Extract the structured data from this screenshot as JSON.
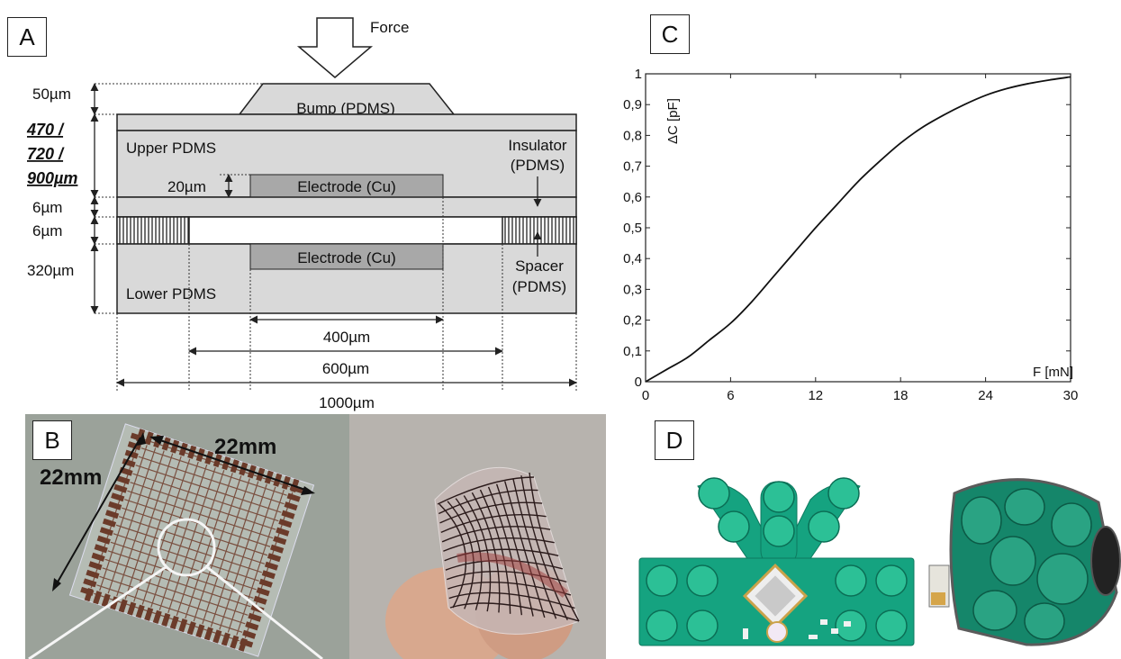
{
  "panels": {
    "a": "A",
    "b": "B",
    "c": "C",
    "d": "D"
  },
  "diagram_a": {
    "force_label": "Force",
    "bump_label": "Bump (PDMS)",
    "upper_label": "Upper PDMS",
    "lower_label": "Lower PDMS",
    "electrode_label": "Electrode (Cu)",
    "insulator_label_1": "Insulator",
    "insulator_label_2": "(PDMS)",
    "spacer_label_1": "Spacer",
    "spacer_label_2": "(PDMS)",
    "dims": {
      "bump": "50µm",
      "total_1": "470 /",
      "total_2": "720 /",
      "total_3": "900µm",
      "electrode": "20µm",
      "insulator": "6µm",
      "gap": "6µm",
      "lower": "320µm",
      "w400": "400µm",
      "w600": "600µm",
      "w1000": "1000µm"
    }
  },
  "photo_b": {
    "dim_horizontal": "22mm",
    "dim_vertical": "22mm"
  },
  "chart_data": {
    "type": "line",
    "title": "",
    "xlabel": "F [mN]",
    "ylabel": "ΔC [pF]",
    "xlim": [
      0,
      30
    ],
    "ylim": [
      0,
      1
    ],
    "xticks": [
      "0",
      "6",
      "12",
      "18",
      "24",
      "30"
    ],
    "yticks": [
      "0",
      "0,1",
      "0,2",
      "0,3",
      "0,4",
      "0,5",
      "0,6",
      "0,7",
      "0,8",
      "0,9",
      "1"
    ],
    "grid": false,
    "series": [
      {
        "x": [
          0,
          1.5,
          3,
          4.5,
          6,
          7.5,
          9,
          10.5,
          12,
          13.5,
          15,
          16.5,
          18,
          19.5,
          21,
          22.5,
          24,
          25.5,
          27,
          28.5,
          30
        ],
        "values": [
          0,
          0.04,
          0.08,
          0.135,
          0.19,
          0.26,
          0.34,
          0.42,
          0.5,
          0.575,
          0.65,
          0.715,
          0.775,
          0.825,
          0.865,
          0.9,
          0.93,
          0.952,
          0.968,
          0.98,
          0.99
        ]
      }
    ]
  }
}
